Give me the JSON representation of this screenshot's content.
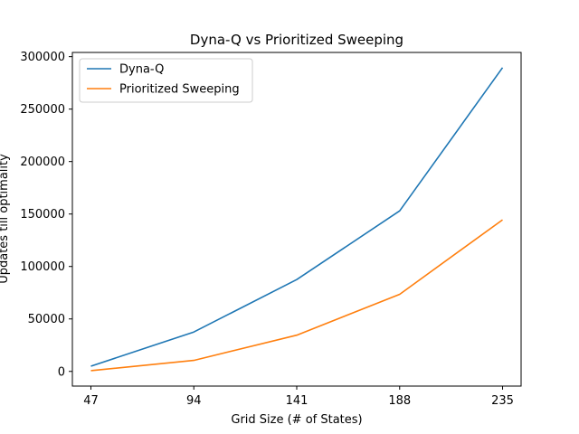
{
  "chart_data": {
    "type": "line",
    "title": "Dyna-Q vs Prioritized Sweeping",
    "xlabel": "Grid Size (# of States)",
    "ylabel": "Updates till optimality",
    "x": [
      47,
      94,
      141,
      188,
      235
    ],
    "x_tick_labels": [
      "47",
      "94",
      "141",
      "188",
      "235"
    ],
    "y_ticks": [
      0,
      50000,
      100000,
      150000,
      200000,
      250000,
      300000
    ],
    "y_tick_labels": [
      "0",
      "50000",
      "100000",
      "150000",
      "200000",
      "250000",
      "300000"
    ],
    "ylim": [
      -14000,
      304000
    ],
    "grid": false,
    "legend_position": "upper-left",
    "series": [
      {
        "name": "Dyna-Q",
        "color": "#1f77b4",
        "values": [
          5000,
          37500,
          87500,
          153000,
          289500
        ]
      },
      {
        "name": "Prioritized Sweeping",
        "color": "#ff7f0e",
        "values": [
          700,
          10500,
          34500,
          73500,
          144500
        ]
      }
    ]
  }
}
